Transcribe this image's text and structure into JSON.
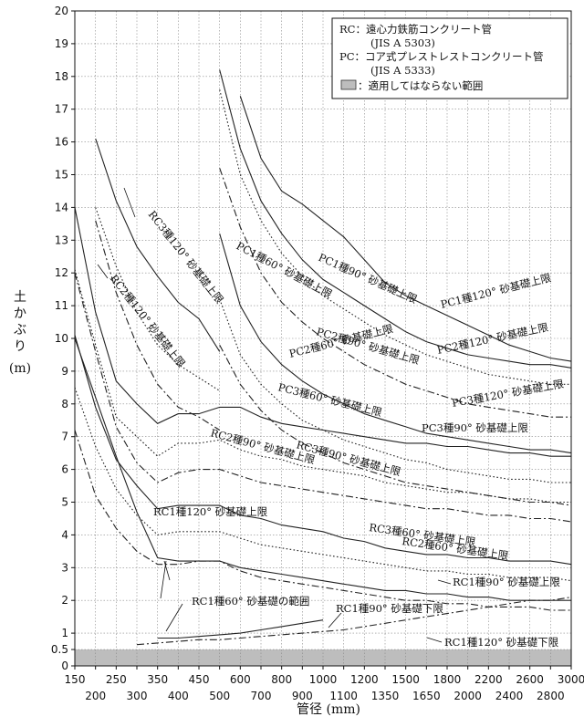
{
  "chart_data": {
    "type": "line",
    "ylabel_lines": [
      "土",
      "か",
      "ぶ",
      "り",
      "(m)"
    ],
    "xlabel": "管径 (mm)",
    "ylim": [
      0,
      20
    ],
    "yticks": [
      "0",
      "0.5",
      "1",
      "2",
      "3",
      "4",
      "5",
      "6",
      "7",
      "8",
      "9",
      "10",
      "11",
      "12",
      "13",
      "14",
      "15",
      "16",
      "17",
      "18",
      "19",
      "20"
    ],
    "ytick_values": [
      0,
      0.5,
      1,
      2,
      3,
      4,
      5,
      6,
      7,
      8,
      9,
      10,
      11,
      12,
      13,
      14,
      15,
      16,
      17,
      18,
      19,
      20
    ],
    "x_categories": [
      "150",
      "200",
      "250",
      "300",
      "350",
      "400",
      "450",
      "500",
      "600",
      "700",
      "800",
      "900",
      "1000",
      "1100",
      "1200",
      "1350",
      "1500",
      "1650",
      "1800",
      "2000",
      "2200",
      "2400",
      "2600",
      "2800",
      "3000"
    ],
    "x_label_row": [
      1,
      2,
      1,
      2,
      1,
      2,
      1,
      2,
      1,
      2,
      1,
      2,
      1,
      2,
      1,
      2,
      1,
      2,
      1,
      2,
      1,
      2,
      1,
      2,
      1
    ],
    "legend": {
      "rc_line1": "RC：遠心力鉄筋コンクリート管",
      "rc_line2": "(JIS A 5303)",
      "pc_line1": "PC：コア式プレストレストコンクリート管",
      "pc_line2": "(JIS A 5333)",
      "hatch_label": "：適用してはならない範囲"
    },
    "shaded_region": {
      "from": 0,
      "to": 0.5
    },
    "series": [
      {
        "start": 1,
        "style": "solid",
        "values": [
          16.1,
          14.2,
          12.8,
          11.9,
          11.1,
          10.6,
          9.6
        ]
      },
      {
        "start": 1,
        "style": "dotted",
        "values": [
          14.0,
          12.2,
          10.8,
          9.8,
          9.2,
          8.8,
          8.4
        ]
      },
      {
        "start": 1,
        "style": "dashdot",
        "values": [
          13.6,
          11.4,
          9.8,
          8.6,
          7.9,
          7.6,
          7.2
        ]
      },
      {
        "start": 0,
        "style": "solid",
        "values": [
          14.0,
          10.8,
          8.7,
          8.0,
          7.4,
          7.7,
          7.7,
          7.9,
          7.9,
          7.6,
          7.4,
          7.3,
          7.2,
          7.1,
          7.0,
          6.9,
          6.8,
          6.8,
          6.7,
          6.7,
          6.6,
          6.5,
          6.5,
          6.4,
          6.4
        ]
      },
      {
        "start": 0,
        "style": "dotted",
        "values": [
          12.1,
          9.8,
          7.6,
          7.0,
          6.4,
          6.8,
          6.8,
          6.9,
          6.6,
          6.4,
          6.3,
          6.1,
          6.0,
          5.9,
          5.8,
          5.6,
          5.5,
          5.4,
          5.3,
          5.3,
          5.2,
          5.1,
          5.1,
          5.0,
          5.0
        ]
      },
      {
        "start": 0,
        "style": "dashdot",
        "values": [
          12.0,
          9.6,
          7.3,
          6.2,
          5.6,
          5.9,
          6.0,
          6.0,
          5.8,
          5.6,
          5.5,
          5.4,
          5.3,
          5.2,
          5.1,
          5.0,
          4.9,
          4.8,
          4.8,
          4.7,
          4.6,
          4.6,
          4.5,
          4.5,
          4.4
        ]
      },
      {
        "start": 0,
        "style": "solid",
        "values": [
          10.1,
          7.9,
          6.3,
          5.5,
          4.8,
          4.9,
          4.9,
          4.9,
          4.6,
          4.5,
          4.3,
          4.2,
          4.1,
          3.9,
          3.8,
          3.6,
          3.5,
          3.4,
          3.4,
          3.3,
          3.3,
          3.2,
          3.2,
          3.2,
          3.1
        ]
      },
      {
        "start": 0,
        "style": "dotted",
        "values": [
          8.5,
          6.7,
          5.4,
          4.6,
          4.0,
          4.1,
          4.1,
          4.1,
          3.9,
          3.7,
          3.6,
          3.5,
          3.4,
          3.3,
          3.2,
          3.1,
          3.0,
          2.9,
          2.9,
          2.8,
          2.8,
          2.7,
          2.7,
          2.7,
          2.6
        ]
      },
      {
        "start": 0,
        "style": "dashdot",
        "values": [
          7.2,
          5.2,
          4.2,
          3.5,
          3.1,
          3.1,
          3.2,
          3.2,
          2.9,
          2.7,
          2.6,
          2.5,
          2.4,
          2.3,
          2.2,
          2.1,
          2.0,
          2.0,
          1.9,
          1.9,
          1.8,
          1.8,
          1.8,
          1.7,
          1.7
        ]
      },
      {
        "start": 0,
        "style": "solid",
        "values": [
          10.0,
          8.2,
          6.4,
          4.7,
          3.3,
          3.2,
          3.2,
          3.2,
          3.0,
          2.9,
          2.8,
          2.7,
          2.6,
          2.5,
          2.4,
          2.3,
          2.3,
          2.2,
          2.2,
          2.1,
          2.1,
          2.0,
          2.0,
          2.0,
          2.0
        ]
      },
      {
        "start": 4,
        "style": "solid",
        "values": [
          0.85,
          0.85,
          0.9,
          0.95,
          1.0,
          1.1,
          1.2,
          1.3,
          1.4
        ]
      },
      {
        "start": 3,
        "style": "dashdot",
        "values": [
          0.65,
          0.7,
          0.75,
          0.8,
          0.8,
          0.85,
          0.9,
          0.95,
          1.0,
          1.05,
          1.1,
          1.2,
          1.3,
          1.4,
          1.5,
          1.6,
          1.7,
          1.8,
          1.9,
          2.0,
          2.0,
          2.1
        ]
      },
      {
        "start": 7,
        "style": "solid",
        "values": [
          18.2,
          15.8,
          14.2,
          13.2,
          12.4,
          11.8,
          11.4,
          11.0,
          10.6,
          10.2,
          9.9,
          9.7,
          9.5,
          9.4,
          9.3,
          9.2,
          9.2,
          9.1
        ]
      },
      {
        "start": 8,
        "style": "solid",
        "values": [
          17.4,
          15.5,
          14.5,
          14.1,
          13.6,
          13.1,
          12.4,
          11.7,
          11.3,
          11.0,
          10.7,
          10.4,
          10.1,
          9.8,
          9.6,
          9.4,
          9.3
        ]
      },
      {
        "start": 7,
        "style": "dotted",
        "values": [
          17.6,
          15.0,
          13.6,
          12.6,
          11.9,
          11.3,
          10.9,
          10.5,
          10.1,
          9.8,
          9.5,
          9.3,
          9.1,
          8.9,
          8.8,
          8.7,
          8.6,
          8.6
        ]
      },
      {
        "start": 7,
        "style": "dashdot",
        "values": [
          15.2,
          13.4,
          12.0,
          11.1,
          10.5,
          10.0,
          9.6,
          9.2,
          8.9,
          8.6,
          8.4,
          8.2,
          8.0,
          7.9,
          7.8,
          7.7,
          7.6,
          7.6
        ]
      },
      {
        "start": 7,
        "style": "solid",
        "values": [
          13.2,
          11.0,
          9.9,
          9.2,
          8.7,
          8.3,
          8.0,
          7.7,
          7.5,
          7.3,
          7.1,
          7.0,
          6.9,
          6.8,
          6.7,
          6.6,
          6.6,
          6.5
        ]
      },
      {
        "start": 7,
        "style": "dotted",
        "values": [
          11.2,
          9.5,
          8.6,
          8.0,
          7.5,
          7.2,
          6.9,
          6.7,
          6.5,
          6.3,
          6.2,
          6.0,
          5.9,
          5.8,
          5.7,
          5.7,
          5.6,
          5.6
        ]
      },
      {
        "start": 7,
        "style": "dashdot",
        "values": [
          9.8,
          8.6,
          7.8,
          7.2,
          6.8,
          6.5,
          6.2,
          6.0,
          5.8,
          5.6,
          5.5,
          5.4,
          5.3,
          5.2,
          5.1,
          5.0,
          5.0,
          4.9
        ]
      }
    ],
    "annotations": [
      {
        "text": "RC3種120° 砂基礎上限",
        "rot": 52
      },
      {
        "text": "RC2種120° 砂基礎上限",
        "rot": 52
      },
      {
        "text": "RC2種90° 砂基礎上限",
        "rot": 15
      },
      {
        "text": "RC1種120° 砂基礎上限",
        "rot": 0
      },
      {
        "text": "RC1種60° 砂基礎の範囲",
        "rot": 0
      },
      {
        "text": "RC1種90° 砂基礎下限",
        "rot": 0
      },
      {
        "text": "RC1種120° 砂基礎下限",
        "rot": 0
      },
      {
        "text": "RC1種90° 砂基礎上限",
        "rot": 0
      },
      {
        "text": "RC3種90° 砂基礎上限",
        "rot": 15
      },
      {
        "text": "RC3種60° 砂基礎上限",
        "rot": 8
      },
      {
        "text": "RC2種60° 砂基礎上限",
        "rot": 8
      },
      {
        "text": "PC1種60° 砂基礎上限",
        "rot": 28
      },
      {
        "text": "PC1種90° 砂基礎上限",
        "rot": 24
      },
      {
        "text": "PC1種120° 砂基礎上限",
        "rot": -14
      },
      {
        "text": "PC2種90° 砂基礎上限",
        "rot": 16
      },
      {
        "text": "PC2種120° 砂基礎上限",
        "rot": -12
      },
      {
        "text": "PC2種60° 砂基礎上限",
        "rot": -14
      },
      {
        "text": "PC3種60° 砂基礎上限",
        "rot": 14
      },
      {
        "text": "PC3種120° 砂基礎上限",
        "rot": -10
      },
      {
        "text": "PC3種90° 砂基礎上限",
        "rot": 0
      }
    ]
  }
}
